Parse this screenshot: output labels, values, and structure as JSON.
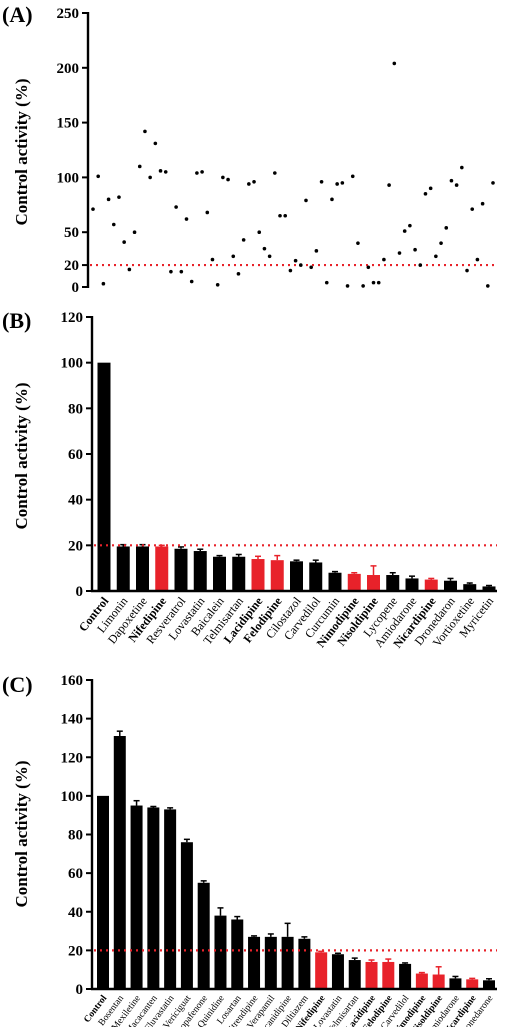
{
  "chart_data": [
    {
      "panel": "(A)",
      "type": "scatter",
      "ylabel": "Control activity (%)",
      "ylim": [
        0,
        250
      ],
      "yticks": [
        0,
        20,
        50,
        100,
        150,
        200,
        250
      ],
      "threshold": 20,
      "grid": false,
      "point_color": "#000000",
      "threshold_color": "#e8222a",
      "y": [
        71,
        101,
        3,
        80,
        57,
        82,
        41,
        16,
        50,
        110,
        142,
        100,
        131,
        106,
        105,
        14,
        73,
        14,
        62,
        5,
        104,
        105,
        68,
        25,
        2,
        100,
        98,
        28,
        12,
        43,
        94,
        96,
        50,
        35,
        28,
        104,
        65,
        65,
        15,
        24,
        20,
        79,
        18,
        33,
        96,
        4,
        80,
        94,
        95,
        1,
        101,
        40,
        1,
        18,
        4,
        4,
        25,
        93,
        204,
        31,
        51,
        56,
        34,
        20,
        85,
        90,
        28,
        40,
        54,
        97,
        93,
        109,
        15,
        71,
        25,
        76,
        1,
        95
      ]
    },
    {
      "panel": "(B)",
      "type": "bar",
      "ylabel": "Control activity (%)",
      "ylim": [
        0,
        120
      ],
      "yticks": [
        0,
        20,
        40,
        60,
        80,
        100,
        120
      ],
      "threshold": 20,
      "grid": false,
      "bar_color": "#000000",
      "highlight_color": "#e8222a",
      "categories": [
        "Control",
        "Limonin",
        "Dapoxetine",
        "Nifedipine",
        "Resveratrol",
        "Lovastatin",
        "Baicalein",
        "Telmisartan",
        "Lacidipine",
        "Felodipine",
        "Cilostazol",
        "Carvedilol",
        "Curcumin",
        "Nimodipine",
        "Nisoldipine",
        "Lycopene",
        "Amiodarone",
        "Nicardipine",
        "Dronedaron",
        "Vortioxetine",
        "Myricetin"
      ],
      "values": [
        100,
        19.5,
        19.5,
        19.5,
        18.5,
        17.5,
        15,
        15,
        14,
        13.5,
        13,
        12.5,
        8,
        7.5,
        7,
        7,
        5.5,
        5,
        4.5,
        3,
        2
      ],
      "errors": [
        0,
        0.8,
        0.8,
        0.5,
        0.8,
        0.8,
        0.5,
        1,
        1.2,
        2,
        0.5,
        1,
        0.5,
        0.5,
        4,
        1,
        1,
        0.5,
        1,
        0.5,
        0.4
      ],
      "highlighted": [
        false,
        false,
        false,
        true,
        false,
        false,
        false,
        false,
        true,
        true,
        false,
        false,
        false,
        true,
        true,
        false,
        false,
        true,
        false,
        false,
        false
      ],
      "bold_labels": [
        true,
        false,
        false,
        true,
        false,
        false,
        false,
        false,
        true,
        true,
        false,
        false,
        false,
        true,
        true,
        false,
        false,
        true,
        false,
        false,
        false
      ]
    },
    {
      "panel": "(C)",
      "type": "bar",
      "ylabel": "Control activity (%)",
      "ylim": [
        0,
        160
      ],
      "yticks": [
        0,
        20,
        40,
        60,
        80,
        100,
        120,
        140,
        160
      ],
      "threshold": 20,
      "grid": false,
      "bar_color": "#000000",
      "highlight_color": "#e8222a",
      "categories": [
        "Control",
        "Bosentan",
        "Mexiletine",
        "Macacanten",
        "Fluvastatin",
        "Vericiguat",
        "Propafenone",
        "Quinidine",
        "Losartan",
        "Nitrendipine",
        "Verapamil",
        "Lercanidipine",
        "Diltiazem",
        "Nifedipine",
        "Lovastatin",
        "Telmisartan",
        "Lacidipine",
        "Felodipine",
        "Carvedilol",
        "Nimodipine",
        "Nisoldipine",
        "Amiodarone",
        "Nicardipine",
        "Dronedarone"
      ],
      "values": [
        100,
        131,
        95,
        94,
        93,
        76,
        55,
        38,
        36,
        27,
        27,
        27,
        26,
        19,
        18,
        15,
        14,
        14,
        13,
        8,
        7.5,
        5.5,
        5,
        4.5
      ],
      "errors": [
        0,
        2.5,
        2.5,
        0.5,
        0.8,
        1.5,
        1,
        4,
        1.5,
        0.5,
        1.5,
        7,
        1,
        0.5,
        0.5,
        1,
        1,
        1.5,
        0.5,
        0.5,
        4,
        1,
        0.5,
        0.8
      ],
      "highlighted": [
        false,
        false,
        false,
        false,
        false,
        false,
        false,
        false,
        false,
        false,
        false,
        false,
        false,
        true,
        false,
        false,
        true,
        true,
        false,
        true,
        true,
        false,
        true,
        false
      ],
      "bold_labels": [
        true,
        false,
        false,
        false,
        false,
        false,
        false,
        false,
        false,
        false,
        false,
        false,
        false,
        true,
        false,
        false,
        true,
        true,
        false,
        true,
        true,
        false,
        true,
        false
      ]
    }
  ]
}
